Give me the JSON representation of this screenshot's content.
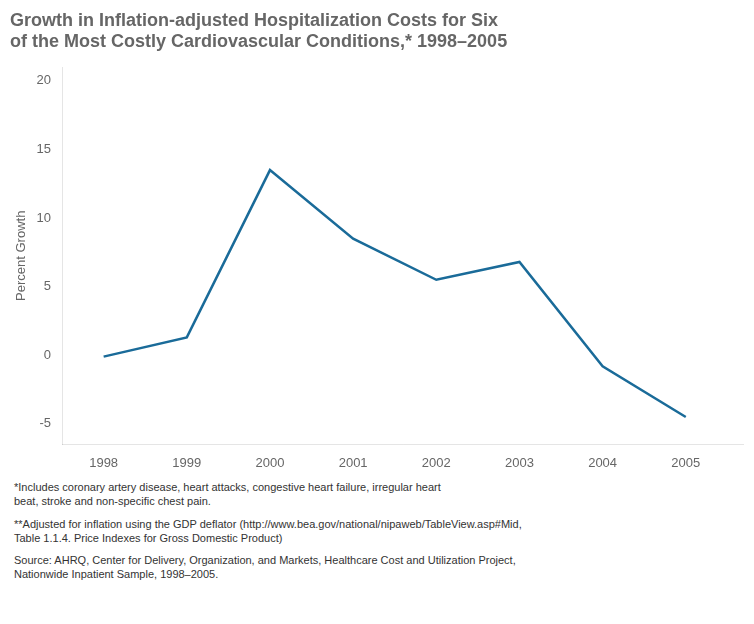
{
  "chart_data": {
    "type": "line",
    "title": "Growth in Inflation-adjusted Hospitalization Costs for Six\nof the Most Costly Cardiovascular Conditions,* 1998–2005",
    "x": [
      1998,
      1999,
      2000,
      2001,
      2002,
      2003,
      2004,
      2005
    ],
    "values": [
      -0.1,
      1.3,
      13.5,
      8.5,
      5.5,
      6.8,
      -0.8,
      -4.5
    ],
    "color": "#1a6b99",
    "y_label": "Percent Growth",
    "xlim": [
      1997.5,
      2005.7
    ],
    "xticks": [
      1998,
      1999,
      2000,
      2001,
      2002,
      2003,
      2004,
      2005
    ],
    "ylim": [
      -6.5,
      21
    ],
    "yticks": [
      -5,
      0,
      5,
      10,
      15,
      20
    ],
    "grid": false,
    "annotations": [
      "*Includes coronary artery disease, heart attacks, congestive heart failure, irregular heart\nbeat, stroke and non-specific chest pain.",
      "**Adjusted for inflation using the GDP deflator (http://www.bea.gov/national/nipaweb/TableView.asp#Mid,\nTable 1.1.4. Price Indexes for Gross Domestic Product)",
      "Source:  AHRQ, Center for Delivery, Organization, and Markets, Healthcare Cost and Utilization Project,\nNationwide Inpatient Sample, 1998–2005."
    ]
  }
}
